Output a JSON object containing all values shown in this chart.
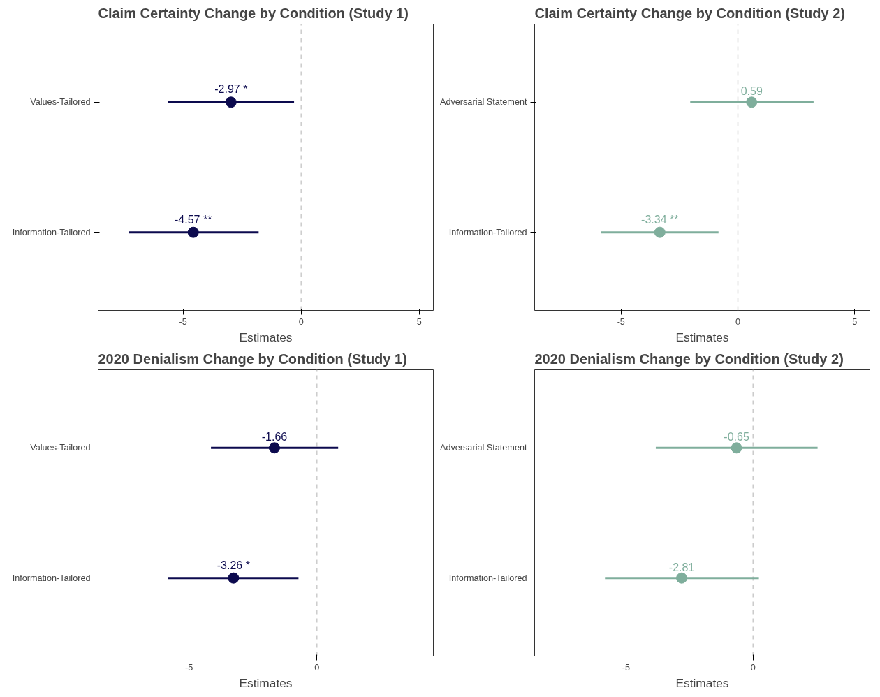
{
  "chart_data": [
    {
      "type": "scatter",
      "orientation": "horizontal",
      "title": "Claim Certainty Change by Condition (Study 1)",
      "xlabel": "Estimates",
      "categories": [
        "Values-Tailored",
        "Information-Tailored"
      ],
      "series": [
        {
          "color": "#0c0a4e",
          "values": [
            -2.97,
            -4.57
          ],
          "errors": [
            [
              -5.65,
              -0.3
            ],
            [
              -7.3,
              -1.8
            ]
          ],
          "value_labels": [
            "-2.97 *",
            "-4.57 **"
          ]
        }
      ],
      "xlim": [
        -8.6,
        5.6
      ],
      "xticks": [
        -5,
        0,
        5
      ],
      "ref_lines": [
        {
          "axis": "x",
          "value": 0,
          "color": "#cccccc",
          "line_style": "dashed"
        }
      ],
      "grid": false,
      "marker": "circle"
    },
    {
      "type": "scatter",
      "orientation": "horizontal",
      "title": "Claim Certainty Change by Condition (Study 2)",
      "xlabel": "Estimates",
      "categories": [
        "Adversarial Statement",
        "Information-Tailored"
      ],
      "series": [
        {
          "color": "#7fae9c",
          "values": [
            0.59,
            -3.34
          ],
          "errors": [
            [
              -2.04,
              3.24
            ],
            [
              -5.86,
              -0.83
            ]
          ],
          "value_labels": [
            "0.59",
            "-3.34 **"
          ]
        }
      ],
      "xlim": [
        -8.7,
        5.65
      ],
      "xticks": [
        -5,
        0,
        5
      ],
      "ref_lines": [
        {
          "axis": "x",
          "value": 0,
          "color": "#cccccc",
          "line_style": "dashed"
        }
      ],
      "grid": false,
      "marker": "circle"
    },
    {
      "type": "scatter",
      "orientation": "horizontal",
      "title": "2020 Denialism Change by Condition (Study 1)",
      "xlabel": "Estimates",
      "categories": [
        "Values-Tailored",
        "Information-Tailored"
      ],
      "series": [
        {
          "color": "#0c0a4e",
          "values": [
            -1.66,
            -3.26
          ],
          "errors": [
            [
              -4.14,
              0.83
            ],
            [
              -5.81,
              -0.72
            ]
          ],
          "value_labels": [
            "-1.66",
            "-3.26 *"
          ]
        }
      ],
      "xlim": [
        -8.55,
        4.55
      ],
      "xticks": [
        -5,
        0
      ],
      "ref_lines": [
        {
          "axis": "x",
          "value": 0,
          "color": "#cccccc",
          "line_style": "dashed"
        }
      ],
      "grid": false,
      "marker": "circle"
    },
    {
      "type": "scatter",
      "orientation": "horizontal",
      "title": "2020 Denialism Change by Condition (Study 2)",
      "xlabel": "Estimates",
      "categories": [
        "Adversarial Statement",
        "Information-Tailored"
      ],
      "series": [
        {
          "color": "#7fae9c",
          "values": [
            -0.65,
            -2.81
          ],
          "errors": [
            [
              -3.83,
              2.54
            ],
            [
              -5.83,
              0.23
            ]
          ],
          "value_labels": [
            "-0.65",
            "-2.81"
          ]
        }
      ],
      "xlim": [
        -8.6,
        4.6
      ],
      "xticks": [
        -5,
        0
      ],
      "ref_lines": [
        {
          "axis": "x",
          "value": 0,
          "color": "#cccccc",
          "line_style": "dashed"
        }
      ],
      "grid": false,
      "marker": "circle"
    }
  ]
}
